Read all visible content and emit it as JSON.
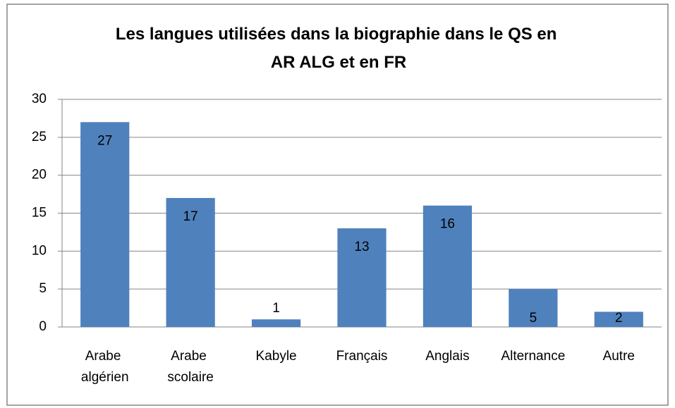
{
  "chart_data": {
    "type": "bar",
    "title": "Les langues utilisées dans la biographie  dans le QS en AR ALG et en FR",
    "categories": [
      "Arabe algérien",
      "Arabe scolaire",
      "Kabyle",
      "Français",
      "Anglais",
      "Alternance",
      "Autre"
    ],
    "values": [
      27,
      17,
      1,
      13,
      16,
      5,
      2
    ],
    "color": "#4f81bd",
    "ylim": [
      0,
      30
    ],
    "yticks": [
      0,
      5,
      10,
      15,
      20,
      25,
      30
    ],
    "grid": true
  }
}
